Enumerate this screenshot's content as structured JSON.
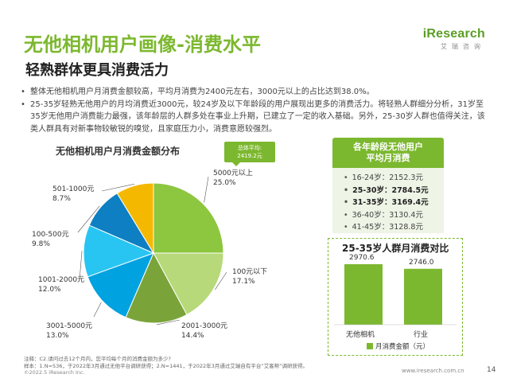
{
  "header": {
    "title": "无他相机用户画像-消费水平",
    "subtitle": "轻熟群体更具消费活力",
    "logo_text": "iResearch",
    "logo_cn": "艾瑞咨询"
  },
  "bullets": [
    "整体无他相机用户月消费金额较高，平均月消费为2400元左右，3000元以上的占比达到38.0%。",
    "25-35岁轻熟无他用户的月均消费近3000元，较24岁及以下年龄段的用户展现出更多的消费活力。将轻熟人群细分分析，31岁至35岁无他用户消费能力最强，该年龄层的人群多处在事业上升期，已建立了一定的收入基础。另外，25-30岁人群也值得关注，该类人群具有对新事物较敏锐的嗅觉，且家庭压力小，消费意愿较强烈。"
  ],
  "chart_data": [
    {
      "type": "pie",
      "title": "无他相机用户月消费金额分布",
      "annotation": "总体平均: 2419.2元",
      "annotation_label": "总体平均:",
      "annotation_value": "2419.2元",
      "slices": [
        {
          "label": "5000元以上",
          "value": 25.0,
          "text": "25.0%",
          "color": "#8dc63f"
        },
        {
          "label": "100元以下",
          "value": 17.1,
          "text": "17.1%",
          "color": "#b7d97a"
        },
        {
          "label": "2001-3000元",
          "value": 14.4,
          "text": "14.4%",
          "color": "#7aa43a"
        },
        {
          "label": "3001-5000元",
          "value": 13.0,
          "text": "13.0%",
          "color": "#00a2e0"
        },
        {
          "label": "1001-2000元",
          "value": 12.0,
          "text": "12.0%",
          "color": "#29c5f2"
        },
        {
          "label": "100-500元",
          "value": 9.8,
          "text": "9.8%",
          "color": "#0d7fc2"
        },
        {
          "label": "501-1000元",
          "value": 8.7,
          "text": "8.7%",
          "color": "#f5b800"
        }
      ]
    },
    {
      "type": "table",
      "title_line1": "各年龄段无他用户",
      "title_line2": "平均月消费",
      "rows": [
        {
          "age": "16-24岁",
          "value": "2152.3元",
          "bold": false
        },
        {
          "age": "25-30岁",
          "value": "2784.5元",
          "bold": true
        },
        {
          "age": "31-35岁",
          "value": "3169.4元",
          "bold": true
        },
        {
          "age": "36-40岁",
          "value": "3130.4元",
          "bold": false
        },
        {
          "age": "41-45岁",
          "value": "3128.8元",
          "bold": false
        }
      ]
    },
    {
      "type": "bar",
      "title": "25-35岁人群月消费对比",
      "categories": [
        "无他相机",
        "行业"
      ],
      "values": [
        2970.6,
        2746.0
      ],
      "value_labels": [
        "2970.6",
        "2746.0"
      ],
      "legend": "月消费金额（元）",
      "color": "#7cb82f"
    }
  ],
  "footnotes": {
    "note1": "注释：C2.请问过去12个月内，您平均每个月的消费金额为多少?",
    "note2": "样本：1.N=536，于2022年3月通过无他平台调研获得；2.N=1441，于2022年3月通过艾瑞自有平台“艾客帮”调研获得。",
    "copyright": "©2022.5 iResearch Inc.",
    "website": "www.iresearch.com.cn",
    "page": "14"
  }
}
